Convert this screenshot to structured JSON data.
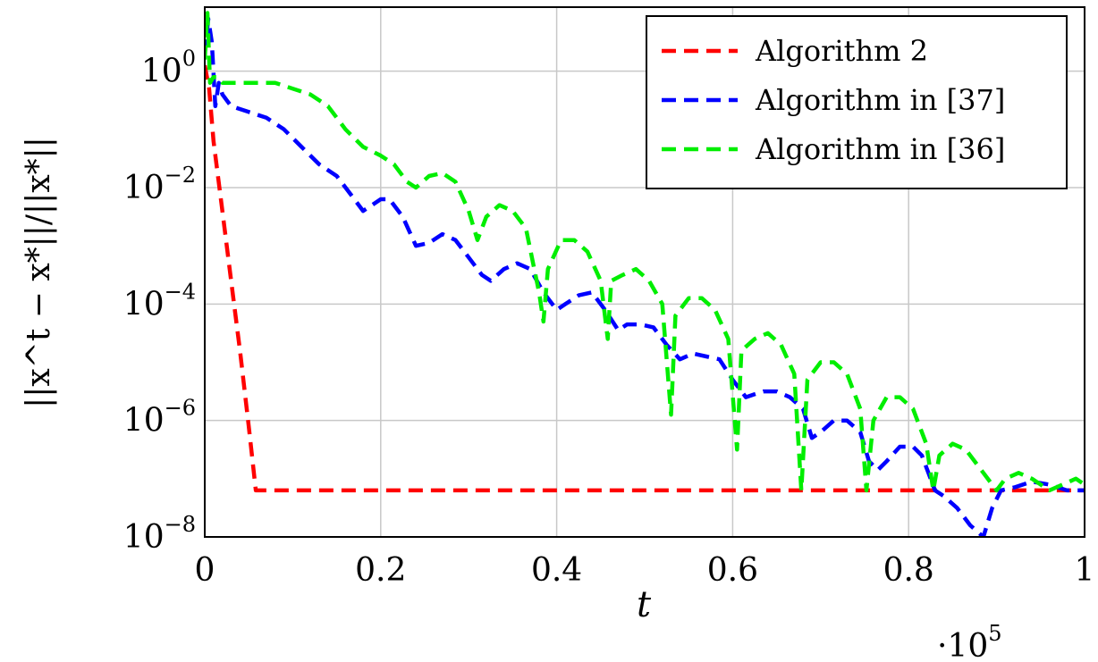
{
  "chart_data": {
    "type": "line",
    "title": "",
    "xlabel": "t",
    "ylabel": "||x^t − x*||/||x*||",
    "x_multiplier": "·10^5",
    "x_multiplier_base": "·10",
    "x_multiplier_exp": "5",
    "xlim": [
      0,
      1
    ],
    "ylim_log10": [
      -8,
      1.1
    ],
    "yscale": "log",
    "grid": true,
    "legend_position": "top-right",
    "x_ticks": [
      {
        "value": 0,
        "label": "0"
      },
      {
        "value": 0.2,
        "label": "0.2"
      },
      {
        "value": 0.4,
        "label": "0.4"
      },
      {
        "value": 0.6,
        "label": "0.6"
      },
      {
        "value": 0.8,
        "label": "0.8"
      },
      {
        "value": 1,
        "label": "1"
      }
    ],
    "y_ticks": [
      {
        "log10": 0,
        "base": "10",
        "exp": "0"
      },
      {
        "log10": -2,
        "base": "10",
        "exp": "−2"
      },
      {
        "log10": -4,
        "base": "10",
        "exp": "−4"
      },
      {
        "log10": -6,
        "base": "10",
        "exp": "−6"
      },
      {
        "log10": -8,
        "base": "10",
        "exp": "−8"
      }
    ],
    "series": [
      {
        "name": "Algorithm 2",
        "color": "#ff0000",
        "points": [
          [
            0,
            0.1
          ],
          [
            0.005,
            -0.3
          ],
          [
            0.01,
            -1.2
          ],
          [
            0.02,
            -2.4
          ],
          [
            0.03,
            -3.6
          ],
          [
            0.04,
            -4.8
          ],
          [
            0.05,
            -6.1
          ],
          [
            0.058,
            -7.2
          ],
          [
            0.07,
            -7.2
          ],
          [
            0.3,
            -7.2
          ],
          [
            0.6,
            -7.2
          ],
          [
            0.9,
            -7.2
          ],
          [
            1,
            -7.2
          ]
        ]
      },
      {
        "name": "Algorithm in [37]",
        "color": "#0000ff",
        "points": [
          [
            0,
            0.3
          ],
          [
            0.004,
            0.9
          ],
          [
            0.008,
            0.5
          ],
          [
            0.012,
            -0.6
          ],
          [
            0.016,
            -0.2
          ],
          [
            0.02,
            -0.4
          ],
          [
            0.025,
            -0.5
          ],
          [
            0.03,
            -0.6
          ],
          [
            0.05,
            -0.7
          ],
          [
            0.07,
            -0.8
          ],
          [
            0.09,
            -1.0
          ],
          [
            0.11,
            -1.3
          ],
          [
            0.13,
            -1.6
          ],
          [
            0.15,
            -1.8
          ],
          [
            0.165,
            -2.1
          ],
          [
            0.18,
            -2.4
          ],
          [
            0.19,
            -2.3
          ],
          [
            0.2,
            -2.2
          ],
          [
            0.21,
            -2.2
          ],
          [
            0.225,
            -2.5
          ],
          [
            0.24,
            -3.0
          ],
          [
            0.255,
            -2.95
          ],
          [
            0.27,
            -2.8
          ],
          [
            0.285,
            -2.9
          ],
          [
            0.3,
            -3.2
          ],
          [
            0.315,
            -3.5
          ],
          [
            0.325,
            -3.6
          ],
          [
            0.34,
            -3.4
          ],
          [
            0.355,
            -3.3
          ],
          [
            0.37,
            -3.4
          ],
          [
            0.385,
            -3.8
          ],
          [
            0.4,
            -4.1
          ],
          [
            0.41,
            -4.0
          ],
          [
            0.425,
            -3.85
          ],
          [
            0.44,
            -3.8
          ],
          [
            0.455,
            -4.1
          ],
          [
            0.47,
            -4.45
          ],
          [
            0.48,
            -4.35
          ],
          [
            0.495,
            -4.35
          ],
          [
            0.51,
            -4.4
          ],
          [
            0.525,
            -4.7
          ],
          [
            0.54,
            -4.95
          ],
          [
            0.555,
            -4.85
          ],
          [
            0.57,
            -4.9
          ],
          [
            0.585,
            -4.95
          ],
          [
            0.6,
            -5.3
          ],
          [
            0.615,
            -5.6
          ],
          [
            0.625,
            -5.55
          ],
          [
            0.635,
            -5.5
          ],
          [
            0.65,
            -5.5
          ],
          [
            0.665,
            -5.6
          ],
          [
            0.68,
            -5.8
          ],
          [
            0.69,
            -6.3
          ],
          [
            0.7,
            -6.2
          ],
          [
            0.715,
            -6.0
          ],
          [
            0.73,
            -6.0
          ],
          [
            0.745,
            -6.2
          ],
          [
            0.755,
            -6.7
          ],
          [
            0.765,
            -6.85
          ],
          [
            0.775,
            -6.7
          ],
          [
            0.79,
            -6.45
          ],
          [
            0.805,
            -6.45
          ],
          [
            0.815,
            -6.6
          ],
          [
            0.83,
            -7.2
          ],
          [
            0.84,
            -7.3
          ],
          [
            0.855,
            -7.5
          ],
          [
            0.87,
            -7.8
          ],
          [
            0.885,
            -8.0
          ],
          [
            0.895,
            -7.5
          ],
          [
            0.905,
            -7.2
          ],
          [
            0.92,
            -7.15
          ],
          [
            0.94,
            -7.05
          ],
          [
            0.96,
            -7.1
          ],
          [
            0.98,
            -7.2
          ],
          [
            1,
            -7.2
          ]
        ]
      },
      {
        "name": "Algorithm in [36]",
        "color": "#00ee00",
        "points": [
          [
            0,
            0.2
          ],
          [
            0.003,
            1.0
          ],
          [
            0.006,
            -0.2
          ],
          [
            0.01,
            -0.1
          ],
          [
            0.015,
            -0.1
          ],
          [
            0.02,
            -0.2
          ],
          [
            0.025,
            -0.2
          ],
          [
            0.03,
            -0.2
          ],
          [
            0.04,
            -0.2
          ],
          [
            0.06,
            -0.2
          ],
          [
            0.08,
            -0.2
          ],
          [
            0.1,
            -0.3
          ],
          [
            0.12,
            -0.4
          ],
          [
            0.14,
            -0.6
          ],
          [
            0.16,
            -1.0
          ],
          [
            0.18,
            -1.3
          ],
          [
            0.2,
            -1.45
          ],
          [
            0.215,
            -1.6
          ],
          [
            0.23,
            -1.9
          ],
          [
            0.24,
            -2.0
          ],
          [
            0.255,
            -1.8
          ],
          [
            0.27,
            -1.75
          ],
          [
            0.285,
            -1.9
          ],
          [
            0.3,
            -2.4
          ],
          [
            0.31,
            -2.9
          ],
          [
            0.32,
            -2.5
          ],
          [
            0.335,
            -2.3
          ],
          [
            0.35,
            -2.4
          ],
          [
            0.365,
            -2.7
          ],
          [
            0.38,
            -3.8
          ],
          [
            0.385,
            -4.3
          ],
          [
            0.39,
            -3.4
          ],
          [
            0.405,
            -2.9
          ],
          [
            0.42,
            -2.9
          ],
          [
            0.435,
            -3.1
          ],
          [
            0.45,
            -3.6
          ],
          [
            0.458,
            -4.6
          ],
          [
            0.462,
            -3.6
          ],
          [
            0.475,
            -3.5
          ],
          [
            0.49,
            -3.4
          ],
          [
            0.505,
            -3.6
          ],
          [
            0.52,
            -4.0
          ],
          [
            0.53,
            -5.9
          ],
          [
            0.535,
            -4.2
          ],
          [
            0.55,
            -3.9
          ],
          [
            0.565,
            -3.9
          ],
          [
            0.58,
            -4.1
          ],
          [
            0.595,
            -4.6
          ],
          [
            0.605,
            -6.5
          ],
          [
            0.61,
            -4.8
          ],
          [
            0.625,
            -4.6
          ],
          [
            0.64,
            -4.5
          ],
          [
            0.655,
            -4.7
          ],
          [
            0.67,
            -5.2
          ],
          [
            0.678,
            -7.2
          ],
          [
            0.685,
            -5.3
          ],
          [
            0.7,
            -5.0
          ],
          [
            0.715,
            -5.0
          ],
          [
            0.73,
            -5.2
          ],
          [
            0.745,
            -5.8
          ],
          [
            0.752,
            -7.2
          ],
          [
            0.76,
            -6.0
          ],
          [
            0.775,
            -5.6
          ],
          [
            0.79,
            -5.6
          ],
          [
            0.805,
            -5.8
          ],
          [
            0.82,
            -6.4
          ],
          [
            0.828,
            -7.2
          ],
          [
            0.835,
            -6.6
          ],
          [
            0.85,
            -6.4
          ],
          [
            0.865,
            -6.5
          ],
          [
            0.88,
            -6.8
          ],
          [
            0.9,
            -7.2
          ],
          [
            0.91,
            -7.0
          ],
          [
            0.925,
            -6.9
          ],
          [
            0.94,
            -7.0
          ],
          [
            0.96,
            -7.2
          ],
          [
            0.975,
            -7.1
          ],
          [
            0.99,
            -7.0
          ],
          [
            1,
            -7.1
          ]
        ]
      }
    ]
  }
}
